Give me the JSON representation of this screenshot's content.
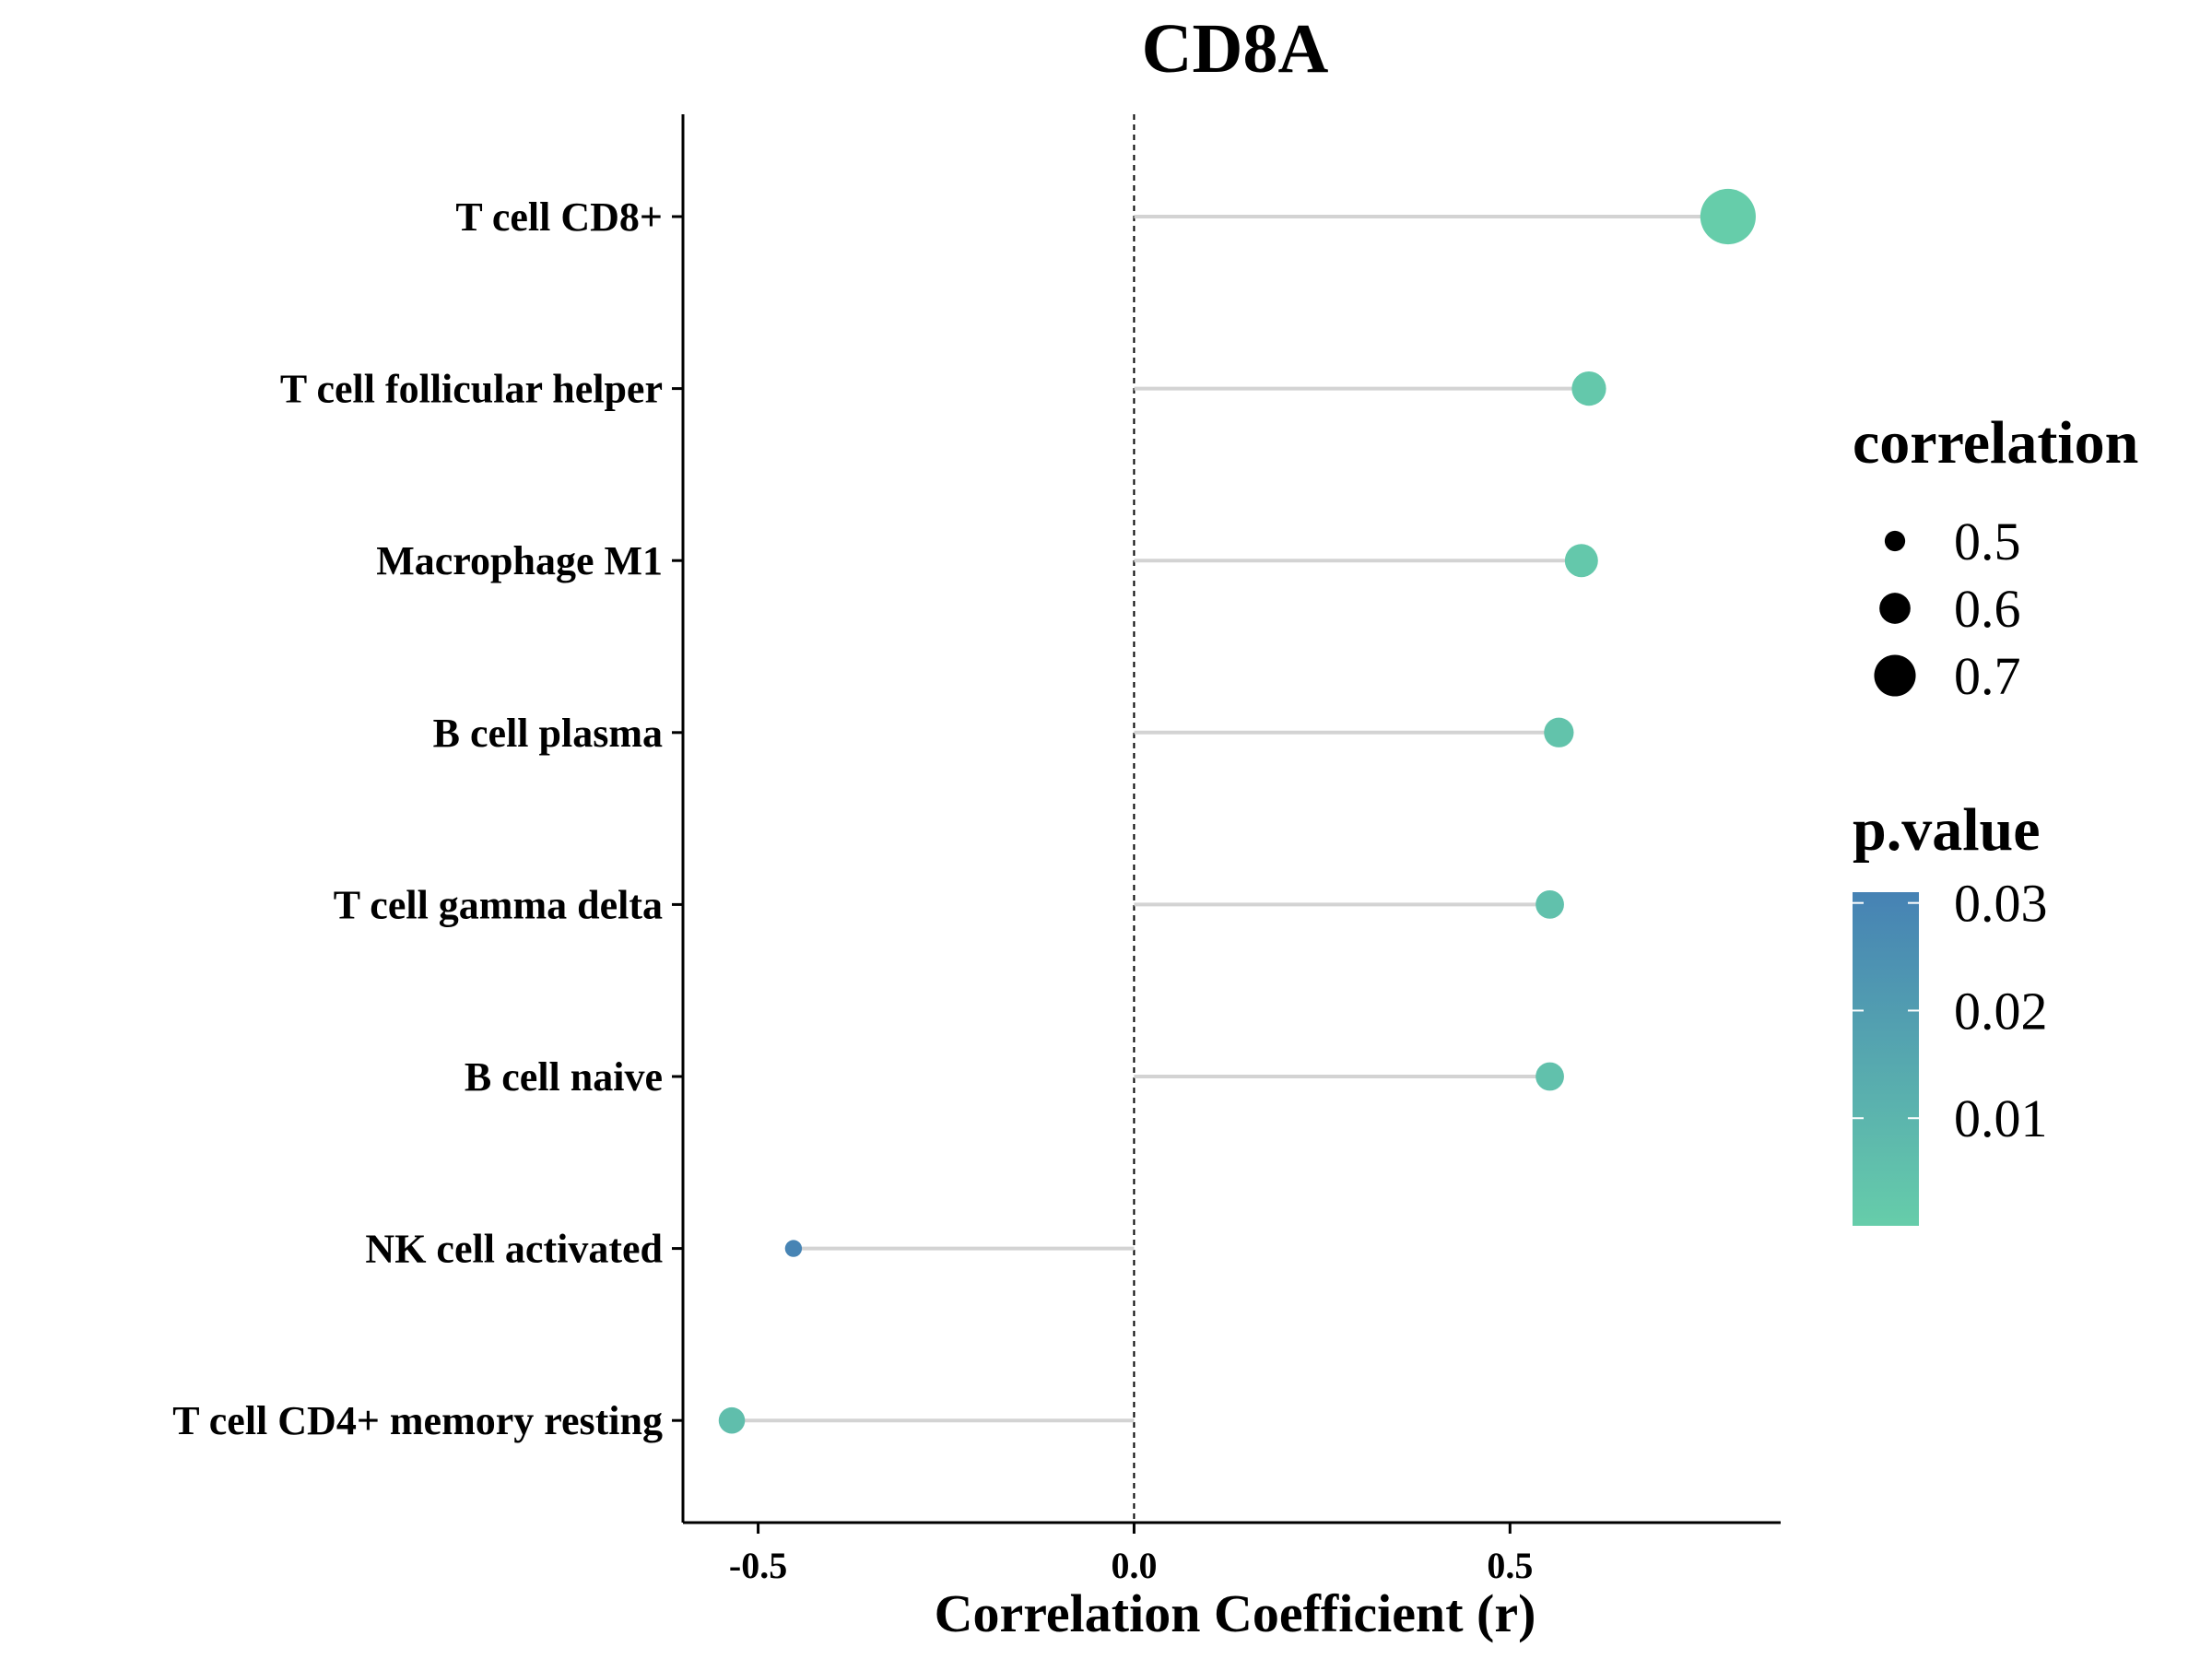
{
  "chart_data": {
    "type": "lollipop",
    "title": "CD8A",
    "xlabel": "Correlation Coefficient (r)",
    "ylabel": "",
    "xlim": [
      -0.6,
      0.86
    ],
    "x_ticks": [
      {
        "value": -0.5,
        "label": "-0.5"
      },
      {
        "value": 0.0,
        "label": "0.0"
      },
      {
        "value": 0.5,
        "label": "0.5"
      }
    ],
    "reference_line": 0,
    "grid": false,
    "legend_placement": "right",
    "categories": [
      "T cell CD8+",
      "T cell follicular helper",
      "Macrophage M1",
      "B cell plasma",
      "T cell gamma delta",
      "B cell naive",
      "NK cell activated",
      "T cell CD4+ memory resting"
    ],
    "values": [
      0.79,
      0.605,
      0.595,
      0.565,
      0.553,
      0.553,
      -0.453,
      -0.535
    ],
    "p_values": [
      0.0001,
      0.002,
      0.002,
      0.004,
      0.005,
      0.005,
      0.03,
      0.006
    ],
    "size_legend": {
      "title": "correlation",
      "entries": [
        {
          "value": 0.5,
          "label": "0.5"
        },
        {
          "value": 0.6,
          "label": "0.6"
        },
        {
          "value": 0.7,
          "label": "0.7"
        }
      ]
    },
    "color_legend": {
      "title": "p.value",
      "range": [
        0,
        0.031
      ],
      "ticks": [
        {
          "value": 0.03,
          "label": "0.03"
        },
        {
          "value": 0.02,
          "label": "0.02"
        },
        {
          "value": 0.01,
          "label": "0.01"
        }
      ],
      "low_color": "#66CDAA",
      "high_color": "#4682B4"
    },
    "colors": {
      "stem": "#d3d3d3",
      "axis": "#000000",
      "reference": "#000000"
    }
  }
}
